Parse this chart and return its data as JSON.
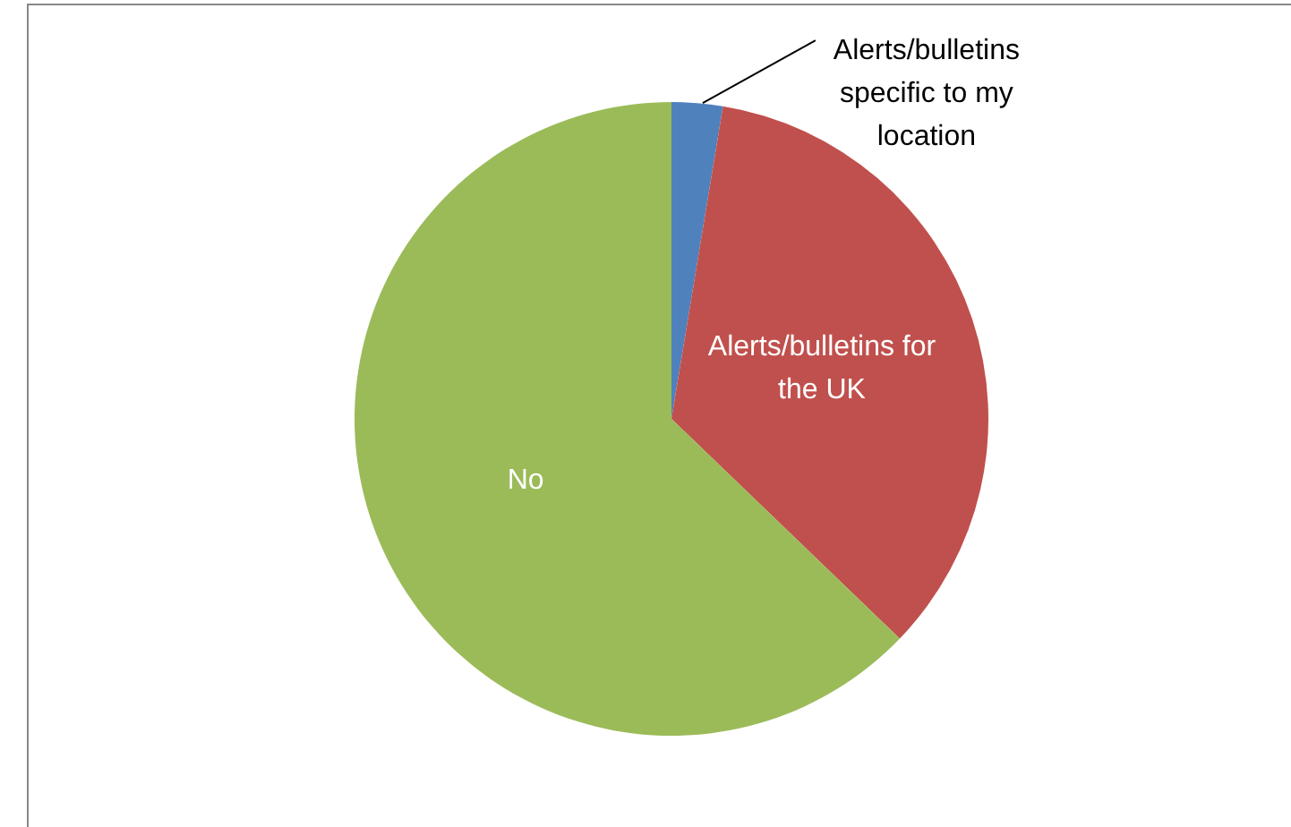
{
  "chart_data": {
    "type": "pie",
    "categories": [
      "Alerts/bulletins specific to my location",
      "Alerts/bulletins for the UK",
      "No"
    ],
    "values": [
      2.6,
      34.6,
      62.8
    ],
    "colors": [
      "#4f81bd",
      "#c0504d",
      "#9bbb59"
    ],
    "legend": false
  }
}
